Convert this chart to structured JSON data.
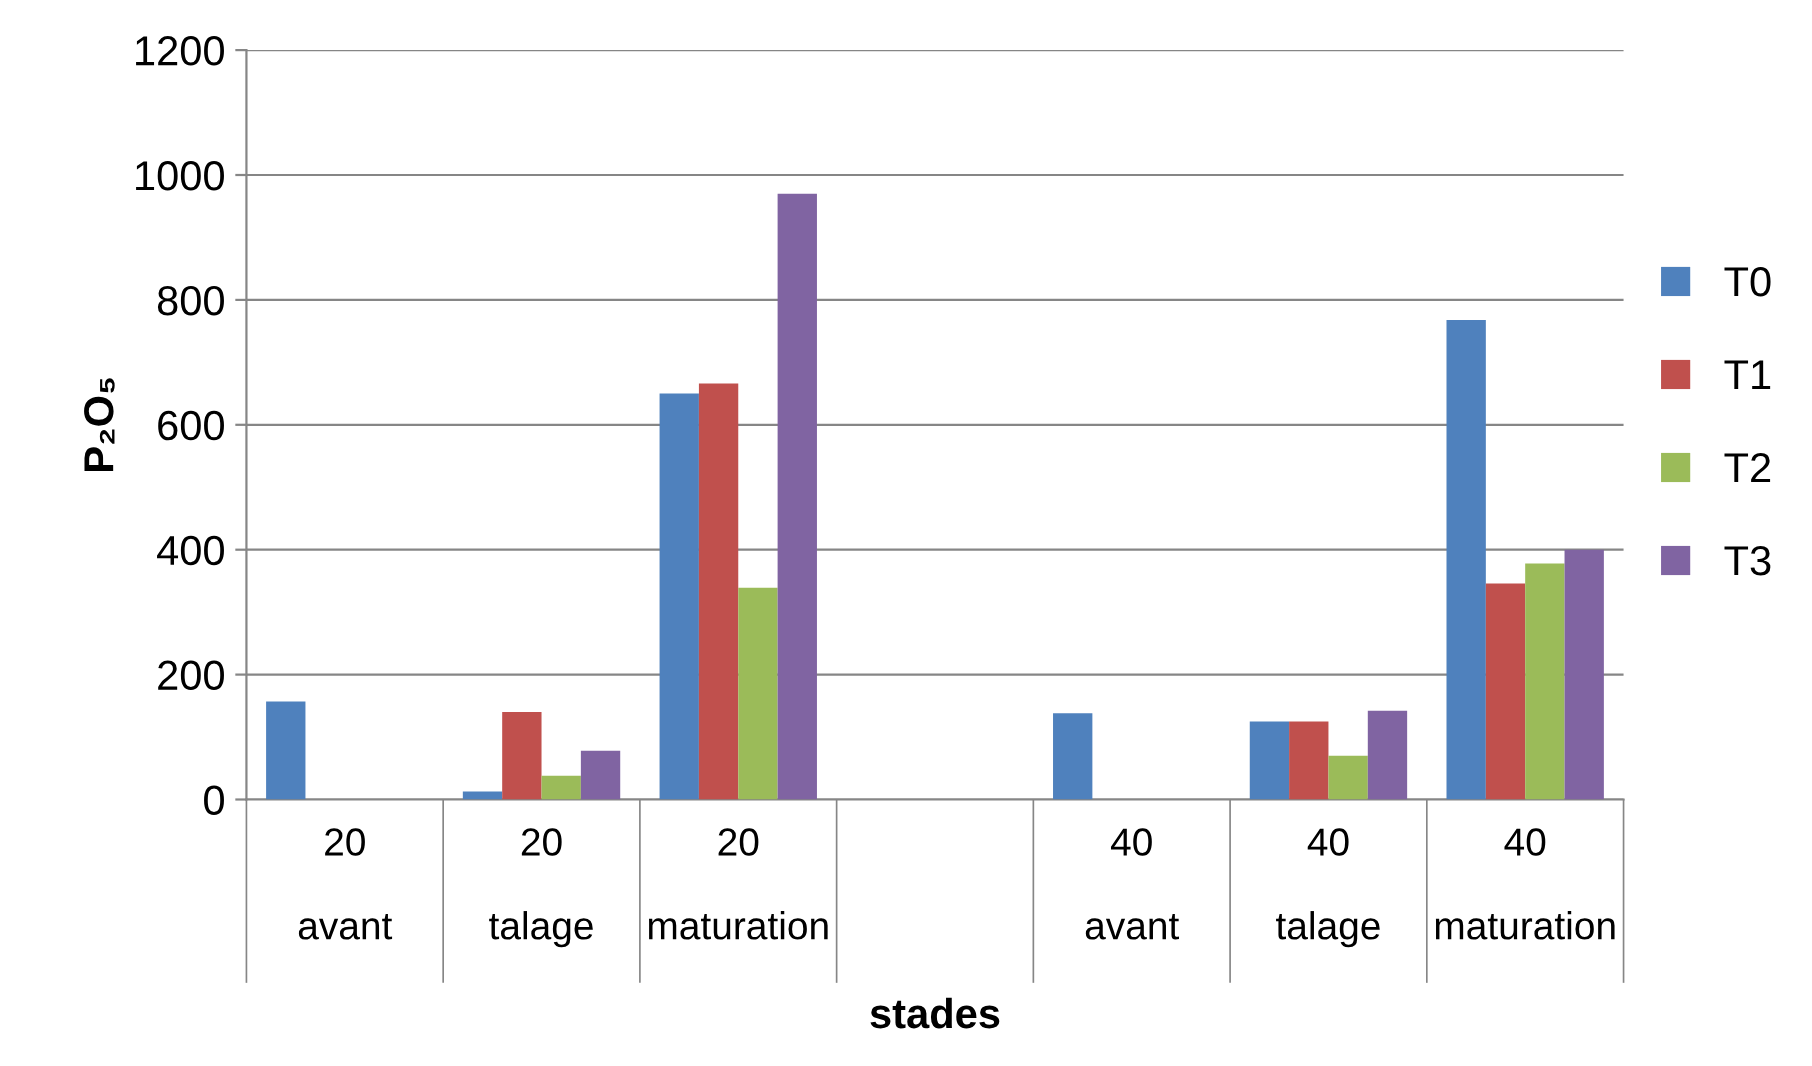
{
  "chart_data": {
    "type": "bar",
    "xlabel": "stades",
    "ylabel": "P₂O₅",
    "categories": [
      "20\n\navant",
      "20\n\ntalage",
      "20\n\nmaturation",
      null,
      "40\n\navant",
      "40\n\ntalage",
      "40\n\nmaturation"
    ],
    "series": [
      {
        "name": "T0",
        "color": "#4f81bd",
        "values": [
          157,
          13,
          650,
          null,
          138,
          125,
          768
        ]
      },
      {
        "name": "T1",
        "color": "#c0504d",
        "values": [
          null,
          140,
          666,
          null,
          null,
          125,
          346
        ]
      },
      {
        "name": "T2",
        "color": "#9bbb59",
        "values": [
          null,
          38,
          339,
          null,
          null,
          70,
          378
        ]
      },
      {
        "name": "T3",
        "color": "#8064a2",
        "values": [
          null,
          78,
          970,
          null,
          null,
          142,
          400
        ]
      }
    ],
    "ylim": [
      0,
      1200
    ],
    "yticks": [
      0,
      200,
      400,
      600,
      800,
      1000,
      1200
    ],
    "grid": "y",
    "legend": "right"
  }
}
